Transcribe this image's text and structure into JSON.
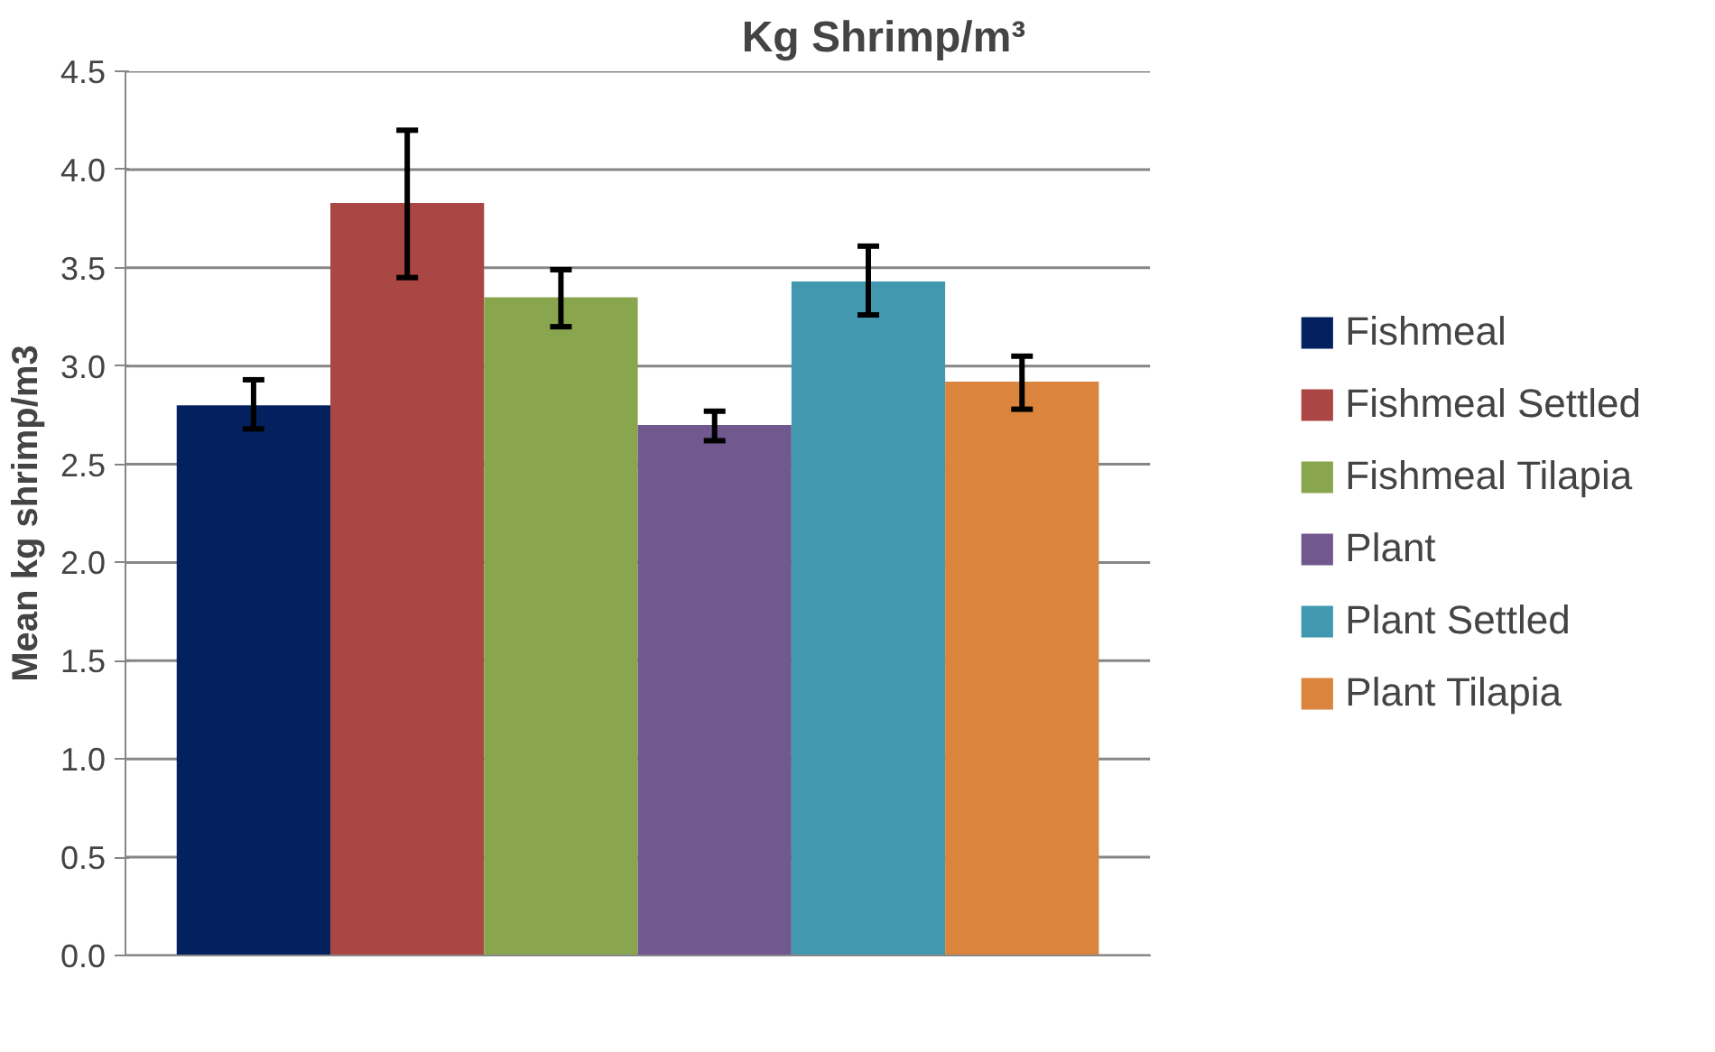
{
  "chart_data": {
    "type": "bar",
    "title": "Kg Shrimp/m³",
    "ylabel": "Mean kg shrimp/m3",
    "categories": [
      null
    ],
    "series": [
      {
        "name": "Fishmeal",
        "color": "#03215e",
        "values": [
          2.8
        ],
        "errors": [
          [
            2.68,
            2.93
          ]
        ]
      },
      {
        "name": "Fishmeal Settled",
        "color": "#aa4643",
        "values": [
          3.83
        ],
        "errors": [
          [
            3.45,
            4.2
          ]
        ]
      },
      {
        "name": "Fishmeal Tilapia",
        "color": "#89a54e",
        "values": [
          3.35
        ],
        "errors": [
          [
            3.2,
            3.49
          ]
        ]
      },
      {
        "name": "Plant",
        "color": "#71588f",
        "values": [
          2.7
        ],
        "errors": [
          [
            2.62,
            2.77
          ]
        ]
      },
      {
        "name": "Plant Settled",
        "color": "#4198af",
        "values": [
          3.43
        ],
        "errors": [
          [
            3.26,
            3.61
          ]
        ]
      },
      {
        "name": "Plant Tilapia",
        "color": "#db843d",
        "values": [
          2.92
        ],
        "errors": [
          [
            2.78,
            3.05
          ]
        ]
      }
    ],
    "ylim": [
      0,
      4.5
    ],
    "yticks": [
      {
        "value": 0,
        "label": "0.0"
      },
      {
        "value": 0.5,
        "label": "0.5"
      },
      {
        "value": 1,
        "label": "1.0"
      },
      {
        "value": 1.5,
        "label": "1.5"
      },
      {
        "value": 2,
        "label": "2.0"
      },
      {
        "value": 2.5,
        "label": "2.5"
      },
      {
        "value": 3,
        "label": "3.0"
      },
      {
        "value": 3.5,
        "label": "3.5"
      },
      {
        "value": 4,
        "label": "4.0"
      },
      {
        "value": 4.5,
        "label": "4.5"
      }
    ],
    "grid": "y",
    "legend": "right"
  }
}
